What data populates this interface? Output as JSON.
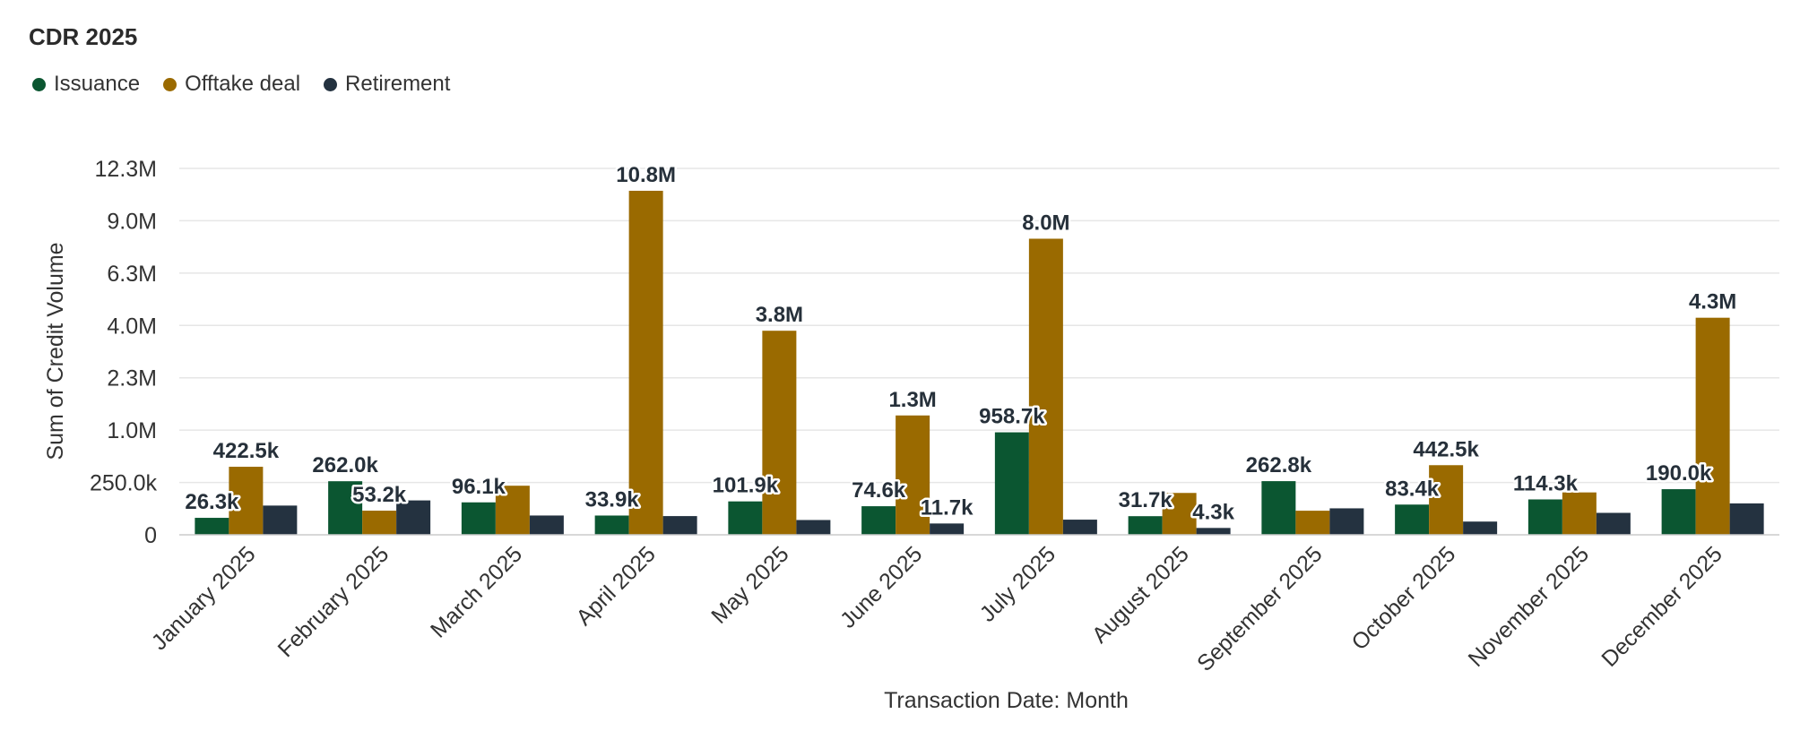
{
  "chart_data": {
    "type": "bar",
    "title": "CDR 2025",
    "xlabel": "Transaction Date: Month",
    "ylabel": "Sum of Credit Volume",
    "y_ticks": [
      "0",
      "250.0k",
      "1.0M",
      "2.3M",
      "4.0M",
      "6.3M",
      "9.0M",
      "12.3M"
    ],
    "y_tick_values": [
      0,
      250000,
      1000000,
      2250000,
      4000000,
      6250000,
      9000000,
      12250000
    ],
    "y_scale": "sqrt",
    "grid": true,
    "legend_position": "top-left",
    "categories": [
      "January 2025",
      "February 2025",
      "March 2025",
      "April 2025",
      "May 2025",
      "June 2025",
      "July 2025",
      "August 2025",
      "September 2025",
      "October 2025",
      "November 2025",
      "December 2025"
    ],
    "series": [
      {
        "name": "Issuance",
        "color": "#0b5631",
        "values": [
          26300,
          262000,
          96100,
          33900,
          101900,
          74600,
          958700,
          31700,
          262800,
          83400,
          114300,
          190000
        ],
        "labels": [
          "26.3k",
          "262.0k",
          "96.1k",
          "33.9k",
          "101.9k",
          "74.6k",
          "958.7k",
          "31.7k",
          "262.8k",
          "83.4k",
          "114.3k",
          "190.0k"
        ]
      },
      {
        "name": "Offtake deal",
        "color": "#9a6a00",
        "values": [
          422500,
          53200,
          220000,
          10800000,
          3800000,
          1300000,
          8000000,
          160000,
          53000,
          442500,
          164000,
          4300000
        ],
        "labels": [
          "422.5k",
          "53.2k",
          "",
          "10.8M",
          "3.8M",
          "1.3M",
          "8.0M",
          "",
          "",
          "442.5k",
          "",
          "4.3M"
        ]
      },
      {
        "name": "Retirement",
        "color": "#243240",
        "values": [
          78000,
          108000,
          34000,
          32000,
          20000,
          11700,
          21000,
          4300,
          64000,
          16000,
          44000,
          90000
        ],
        "labels": [
          "",
          "",
          "",
          "",
          "",
          "11.7k",
          "",
          "4.3k",
          "",
          "",
          "",
          ""
        ]
      }
    ]
  }
}
